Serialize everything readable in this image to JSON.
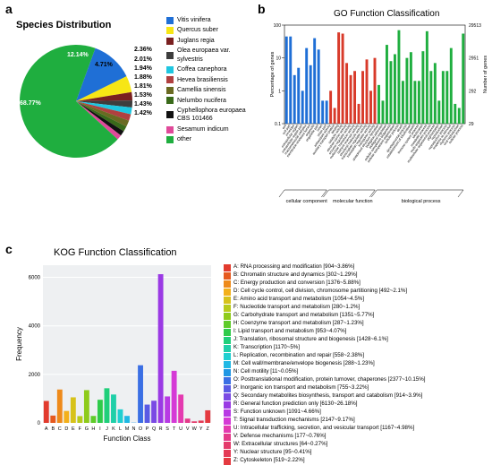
{
  "panelA": {
    "label": "a",
    "title": "Species Distribution",
    "slices": [
      {
        "name": "Vitis vinifera",
        "pct": 12.14,
        "color": "#1f6fd6"
      },
      {
        "name": "Quercus suber",
        "pct": 4.71,
        "color": "#f7e615"
      },
      {
        "name": "Juglans regia",
        "pct": 2.36,
        "color": "#7a2020"
      },
      {
        "name": "Olea europaea var. sylvestris",
        "pct": 2.01,
        "color": "#3d3d3d"
      },
      {
        "name": "Coffea canephora",
        "pct": 1.94,
        "color": "#1fc6e0"
      },
      {
        "name": "Hevea brasiliensis",
        "pct": 1.88,
        "color": "#b04040"
      },
      {
        "name": "Camellia sinensis",
        "pct": 1.81,
        "color": "#6a6a22"
      },
      {
        "name": "Nelumbo nucifera",
        "pct": 1.53,
        "color": "#3a6a1a"
      },
      {
        "name": "Cyphellophora europaea CBS 101466",
        "pct": 1.43,
        "color": "#111111"
      },
      {
        "name": "Sesamum indicum",
        "pct": 1.42,
        "color": "#e04a9a"
      },
      {
        "name": "other",
        "pct": 68.77,
        "color": "#1fae3f"
      }
    ],
    "pct_labels_show": [
      "12.14%",
      "4.71%",
      "2.36%",
      "2.01%",
      "1.94%",
      "1.88%",
      "1.81%",
      "1.53%",
      "1.43%",
      "1.42%",
      "68.77%"
    ],
    "startAngleDeg": -70
  },
  "panelB": {
    "label": "b",
    "title": "GO Function Classification",
    "left_axis_label": "Percentage of genes",
    "right_axis_label": "Number of genes",
    "groups": [
      {
        "name": "cellular component",
        "color": "#1f6fd6",
        "bars": [
          {
            "label": "cell",
            "val": 45
          },
          {
            "label": "cell part",
            "val": 45
          },
          {
            "label": "envelope",
            "val": 3
          },
          {
            "label": "extracellular region",
            "val": 5
          },
          {
            "label": "extracellular region part",
            "val": 1
          },
          {
            "label": "macromolecular complex",
            "val": 20
          },
          {
            "label": "membrane-enclosed lumen",
            "val": 6
          },
          {
            "label": "organelle",
            "val": 40
          },
          {
            "label": "organelle part",
            "val": 18
          },
          {
            "label": "virion",
            "val": 0.5
          },
          {
            "label": "virion part",
            "val": 0.5
          }
        ]
      },
      {
        "name": "molecular function",
        "color": "#d83a2a",
        "bars": [
          {
            "label": "antioxidant activity",
            "val": 1
          },
          {
            "label": "auxiliary transport protein",
            "val": 0.3
          },
          {
            "label": "binding",
            "val": 60
          },
          {
            "label": "catalytic activity",
            "val": 55
          },
          {
            "label": "electron carrier activity",
            "val": 7
          },
          {
            "label": "enzyme regulator activity",
            "val": 3
          },
          {
            "label": "molecular transducer activity",
            "val": 4
          },
          {
            "label": "nutrient reservoir activity",
            "val": 0.4
          },
          {
            "label": "structural molecule activity",
            "val": 4
          },
          {
            "label": "transcription regulator activity",
            "val": 9
          },
          {
            "label": "translation regulator activity",
            "val": 1
          },
          {
            "label": "transporter activity",
            "val": 10
          }
        ]
      },
      {
        "name": "biological process",
        "color": "#1fae3f",
        "bars": [
          {
            "label": "anatomical structure formation",
            "val": 1.5
          },
          {
            "label": "biological adhesion",
            "val": 0.5
          },
          {
            "label": "biological regulation",
            "val": 25
          },
          {
            "label": "cellular component biogenesis",
            "val": 8
          },
          {
            "label": "cellular component organization",
            "val": 13
          },
          {
            "label": "cellular process",
            "val": 70
          },
          {
            "label": "death",
            "val": 2
          },
          {
            "label": "developmental process",
            "val": 10
          },
          {
            "label": "establishment of localization",
            "val": 15
          },
          {
            "label": "growth",
            "val": 2
          },
          {
            "label": "immune system process",
            "val": 2
          },
          {
            "label": "localization",
            "val": 16
          },
          {
            "label": "metabolic process",
            "val": 65
          },
          {
            "label": "multi-organism process",
            "val": 4
          },
          {
            "label": "multicellular organismal process",
            "val": 7
          },
          {
            "label": "pigmentation",
            "val": 0.5
          },
          {
            "label": "reproduction",
            "val": 4
          },
          {
            "label": "reproductive process",
            "val": 4
          },
          {
            "label": "response to stimulus",
            "val": 20
          },
          {
            "label": "rhythmic process",
            "val": 0.4
          },
          {
            "label": "viral reproduction",
            "val": 0.3
          },
          {
            "label": "cellular process",
            "val": 55
          }
        ]
      }
    ],
    "ylog": {
      "min": 0.1,
      "max": 100
    },
    "right_ticks": [
      "29513",
      "2951",
      "292",
      "29"
    ]
  },
  "panelC": {
    "label": "c",
    "title": "KOG Function Classification",
    "x_label": "Function Class",
    "y_label": "Frequency",
    "y_max": 6500,
    "y_ticks": [
      0,
      2000,
      4000,
      6000
    ],
    "bg": "#eef0f2",
    "grid": "#ffffff",
    "classes": [
      {
        "code": "A",
        "desc": "RNA processing and modification [904~3.86%]",
        "val": 904,
        "color": "#e23b2e"
      },
      {
        "code": "B",
        "desc": "Chromatin structure and dynamics [302~1.29%]",
        "val": 302,
        "color": "#e65a1f"
      },
      {
        "code": "C",
        "desc": "Energy production and conversion [1376~5.88%]",
        "val": 1376,
        "color": "#ee8a1a"
      },
      {
        "code": "D",
        "desc": "Cell cycle control, cell division, chromosome partitioning [492~2.1%]",
        "val": 492,
        "color": "#f3b01a"
      },
      {
        "code": "E",
        "desc": "Amino acid transport and metabolism [1054~4.5%]",
        "val": 1054,
        "color": "#d7c21a"
      },
      {
        "code": "F",
        "desc": "Nucleotide transport and metabolism [280~1.2%]",
        "val": 280,
        "color": "#b8cb1a"
      },
      {
        "code": "G",
        "desc": "Carbohydrate transport and metabolism [1351~5.77%]",
        "val": 1351,
        "color": "#8ecb1a"
      },
      {
        "code": "H",
        "desc": "Coenzyme transport and metabolism [287~1.23%]",
        "val": 287,
        "color": "#5fcb2a"
      },
      {
        "code": "I",
        "desc": "Lipid transport and metabolism [953~4.07%]",
        "val": 953,
        "color": "#2fcb4a"
      },
      {
        "code": "J",
        "desc": "Translation, ribosomal structure and biogenesis [1428~6.1%]",
        "val": 1428,
        "color": "#1fcf7a"
      },
      {
        "code": "K",
        "desc": "Transcription [1170~5%]",
        "val": 1170,
        "color": "#1fcfa8"
      },
      {
        "code": "L",
        "desc": "Replication, recombination and repair [558~2.38%]",
        "val": 558,
        "color": "#1fcfd0"
      },
      {
        "code": "M",
        "desc": "Cell wall/membrane/envelope biogenesis [288~1.23%]",
        "val": 288,
        "color": "#1fb8e4"
      },
      {
        "code": "N",
        "desc": "Cell motility [11~0.05%]",
        "val": 11,
        "color": "#1f97e4"
      },
      {
        "code": "O",
        "desc": "Posttranslational modification, protein turnover, chaperones [2377~10.15%]",
        "val": 2377,
        "color": "#3a6fe4"
      },
      {
        "code": "P",
        "desc": "Inorganic ion transport and metabolism [755~3.22%]",
        "val": 755,
        "color": "#5a5ae4"
      },
      {
        "code": "Q",
        "desc": "Secondary metabolites biosynthesis, transport and catabolism [914~3.9%]",
        "val": 914,
        "color": "#7a4ae4"
      },
      {
        "code": "R",
        "desc": "General function prediction only [6130~26.18%]",
        "val": 6130,
        "color": "#9a3ae4"
      },
      {
        "code": "S",
        "desc": "Function unknown [1091~4.66%]",
        "val": 1091,
        "color": "#b83ae4"
      },
      {
        "code": "T",
        "desc": "Signal transduction mechanisms [2147~9.17%]",
        "val": 2147,
        "color": "#d53ad6"
      },
      {
        "code": "U",
        "desc": "Intracellular trafficking, secretion, and vesicular transport [1167~4.98%]",
        "val": 1167,
        "color": "#e43ab0"
      },
      {
        "code": "V",
        "desc": "Defense mechanisms [177~0.76%]",
        "val": 177,
        "color": "#e43a8a"
      },
      {
        "code": "W",
        "desc": "Extracellular structures [64~0.27%]",
        "val": 64,
        "color": "#e43a6a"
      },
      {
        "code": "Y",
        "desc": "Nuclear structure [95~0.41%]",
        "val": 95,
        "color": "#e43a55"
      },
      {
        "code": "Z",
        "desc": "Cytoskeleton [519~2.22%]",
        "val": 519,
        "color": "#e43a40"
      }
    ]
  }
}
